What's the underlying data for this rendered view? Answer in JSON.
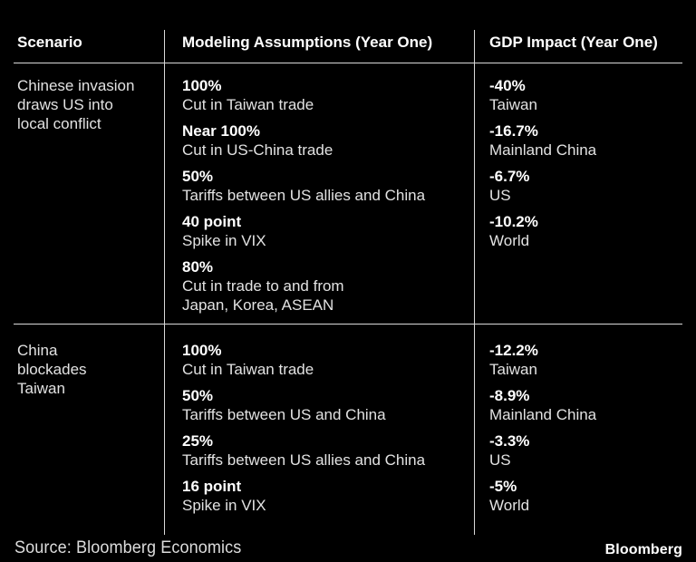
{
  "colors": {
    "background": "#000000",
    "divider_line": "#d9d9d9",
    "text_primary": "#ffffff",
    "text_secondary": "#e2e2e2"
  },
  "chart_data": {
    "type": "table",
    "title": "",
    "columns": [
      "Scenario",
      "Modeling Assumptions (Year One)",
      "GDP Impact (Year One)"
    ],
    "rows": [
      {
        "scenario": "Chinese invasion draws US into local conflict",
        "scenario_lines": [
          "Chinese invasion",
          "draws US into",
          "local conflict"
        ],
        "assumptions": [
          {
            "value": "100%",
            "desc": "Cut in Taiwan trade"
          },
          {
            "value": "Near 100%",
            "desc": "Cut in US-China trade"
          },
          {
            "value": "50%",
            "desc": "Tariffs between US allies and China"
          },
          {
            "value": "40 point",
            "desc": "Spike in VIX"
          },
          {
            "value": "80%",
            "desc": "Cut in trade to and from",
            "desc2": "Japan, Korea, ASEAN"
          }
        ],
        "impacts": [
          {
            "value": "-40%",
            "region": "Taiwan"
          },
          {
            "value": "-16.7%",
            "region": "Mainland China"
          },
          {
            "value": "-6.7%",
            "region": "US"
          },
          {
            "value": "-10.2%",
            "region": "World"
          }
        ]
      },
      {
        "scenario": "China blockades Taiwan",
        "scenario_lines": [
          "China",
          "blockades",
          "Taiwan"
        ],
        "assumptions": [
          {
            "value": "100%",
            "desc": "Cut in Taiwan trade"
          },
          {
            "value": "50%",
            "desc": "Tariffs between US and China"
          },
          {
            "value": "25%",
            "desc": "Tariffs between US allies and China"
          },
          {
            "value": "16 point",
            "desc": "Spike in VIX"
          }
        ],
        "impacts": [
          {
            "value": "-12.2%",
            "region": "Taiwan"
          },
          {
            "value": "-8.9%",
            "region": "Mainland China"
          },
          {
            "value": "-3.3%",
            "region": "US"
          },
          {
            "value": "-5%",
            "region": "World"
          }
        ]
      }
    ],
    "source": "Source: Bloomberg Economics",
    "brand": "Bloomberg"
  }
}
